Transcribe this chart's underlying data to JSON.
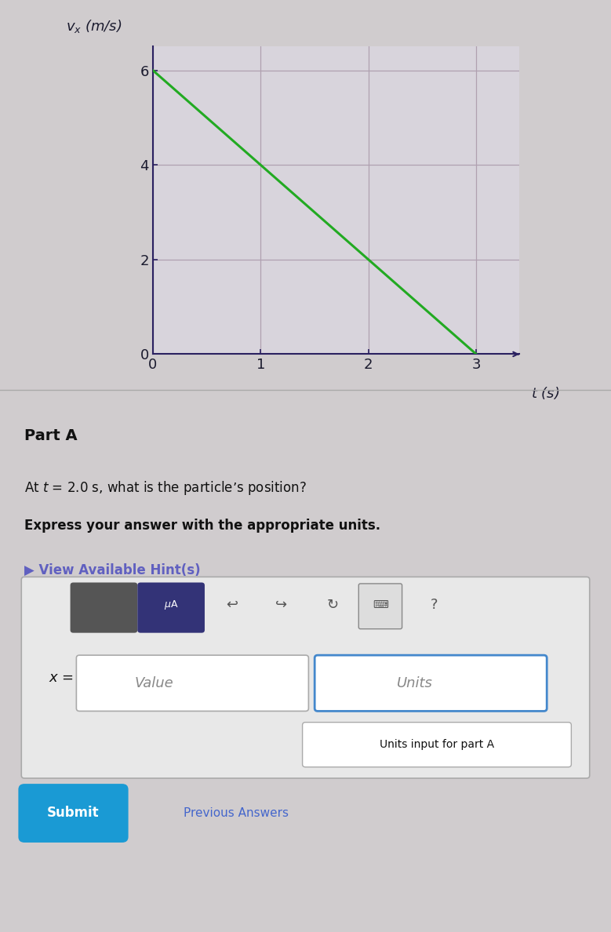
{
  "graph": {
    "x_data": [
      0,
      3
    ],
    "y_data": [
      6,
      0
    ],
    "x_label": "t (s)",
    "y_label": "v_x (m/s)",
    "x_ticks": [
      0,
      1,
      2,
      3
    ],
    "y_ticks": [
      0,
      2,
      4,
      6
    ],
    "xlim": [
      0,
      3.4
    ],
    "ylim": [
      0,
      6.5
    ],
    "line_color": "#22aa22",
    "line_width": 2.2,
    "grid_color": "#b0a0b0",
    "axis_color": "#2a2060",
    "bg_color": "#d8d4dc"
  },
  "page_bg": "#d0ccce",
  "section_bg": "#ccc8ca",
  "part_a_text": "Part A",
  "question_text": "At t = 2.0 s, what is the particle’s position?",
  "bold_text": "Express your answer with the appropriate units.",
  "hint_text": "▶ View Available Hint(s)",
  "hint_color": "#6060c0",
  "answer_box_bg": "#f0f0f0",
  "answer_box_border": "#cccccc",
  "x_eq_text": "x =",
  "value_placeholder": "Value",
  "units_placeholder": "Units",
  "units_border_color": "#4488cc",
  "units_note": "Units input for part A",
  "submit_bg": "#1a9ad4",
  "submit_text": "Submit",
  "prev_answers_text": "Previous Answers",
  "prev_answers_color": "#4466cc"
}
